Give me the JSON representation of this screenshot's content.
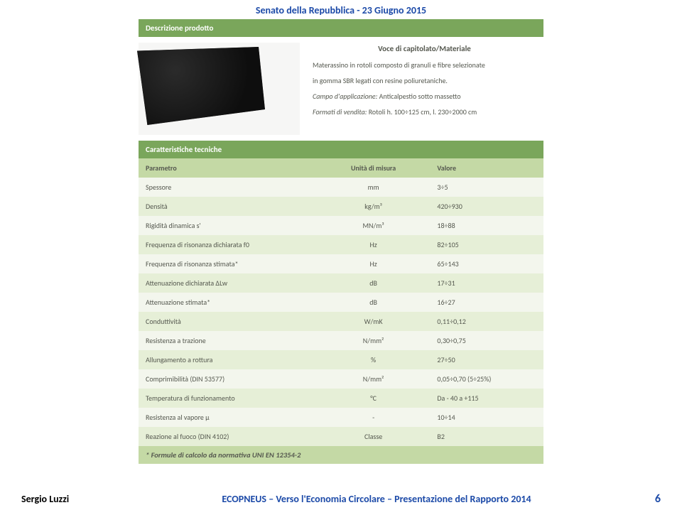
{
  "colors": {
    "header_text": "#1c4aa8",
    "section_bg": "#7aa65b",
    "section_text": "#ffffff",
    "subsection_bg": "#c4d9a5",
    "row_alt_bg": "#e6efd7",
    "row_bg": "#f3f6ed",
    "body_text": "#55584f",
    "footer_accent": "#1c4aa8"
  },
  "header": {
    "text": "Senato della Repubblica - 23 Giugno 2015"
  },
  "product": {
    "section_title": "Descrizione prodotto",
    "subhead": "Voce di capitolato/Materiale",
    "desc1": "Materassino in rotoli composto di granuli e fibre selezionate",
    "desc2": "in gomma SBR legati con resine poliuretaniche.",
    "app_label": "Campo d'applicazione:",
    "app_value": "Anticalpestio sotto massetto",
    "format_label": "Formati di vendita:",
    "format_value": "Rotoli h. 100÷125 cm, l. 230÷2000 cm"
  },
  "tech": {
    "section_title": "Caratteristiche tecniche",
    "headers": {
      "param": "Parametro",
      "unit": "Unità di misura",
      "value": "Valore"
    },
    "rows": [
      {
        "param": "Spessore",
        "unit": "mm",
        "value": "3÷5"
      },
      {
        "param": "Densità",
        "unit": "kg/m³",
        "value": "420÷930"
      },
      {
        "param": "Rigidità dinamica s'",
        "unit": "MN/m³",
        "value": "18÷88"
      },
      {
        "param": "Frequenza di risonanza dichiarata f0",
        "unit": "Hz",
        "value": "82÷105"
      },
      {
        "param": "Frequenza di risonanza stimata*",
        "unit": "Hz",
        "value": "65÷143"
      },
      {
        "param": "Attenuazione dichiarata ΔLw",
        "unit": "dB",
        "value": "17÷31"
      },
      {
        "param": "Attenuazione stimata*",
        "unit": "dB",
        "value": "16÷27"
      },
      {
        "param": "Conduttività",
        "unit": "W/mK",
        "value": "0,11÷0,12"
      },
      {
        "param": "Resistenza a trazione",
        "unit": "N/mm²",
        "value": "0,30÷0,75"
      },
      {
        "param": "Allungamento a rottura",
        "unit": "%",
        "value": "27÷50"
      },
      {
        "param": "Comprimibilità (DIN 53577)",
        "unit": "N/mm²",
        "value": "0,05÷0,70 (5÷25%)"
      },
      {
        "param": "Temperatura di funzionamento",
        "unit": "°C",
        "value": "Da - 40 a +115"
      },
      {
        "param": "Resistenza al vapore µ",
        "unit": "-",
        "value": "10÷14"
      },
      {
        "param": "Reazione al fuoco (DIN 4102)",
        "unit": "Classe",
        "value": "B2"
      }
    ],
    "footnote": "* Formule di calcolo da normativa UNI EN 12354-2"
  },
  "footer": {
    "author": "Sergio Luzzi",
    "mid": "ECOPNEUS – Verso l'Economia Circolare – Presentazione del Rapporto 2014",
    "page": "6"
  }
}
